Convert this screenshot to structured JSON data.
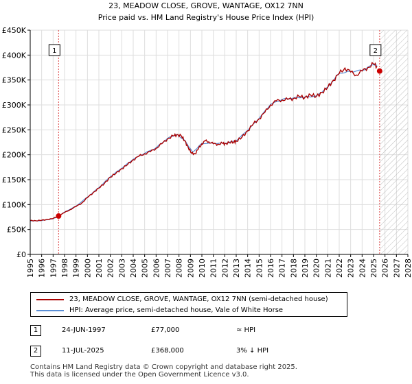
{
  "chart_data": {
    "type": "line",
    "title": "23, MEADOW CLOSE, GROVE, WANTAGE, OX12 7NN",
    "subtitle": "Price paid vs. HM Land Registry's House Price Index (HPI)",
    "xlabel": "",
    "ylabel": "",
    "xlim": [
      1995,
      2028
    ],
    "ylim": [
      0,
      450000
    ],
    "x_ticks": [
      "1995",
      "1996",
      "1997",
      "1998",
      "1999",
      "2000",
      "2001",
      "2002",
      "2003",
      "2004",
      "2005",
      "2006",
      "2007",
      "2008",
      "2009",
      "2010",
      "2011",
      "2012",
      "2013",
      "2014",
      "2015",
      "2016",
      "2017",
      "2018",
      "2019",
      "2020",
      "2021",
      "2022",
      "2023",
      "2024",
      "2025",
      "2026",
      "2027",
      "2028"
    ],
    "y_ticks": [
      {
        "value": 0,
        "label": "£0"
      },
      {
        "value": 50000,
        "label": "£50K"
      },
      {
        "value": 100000,
        "label": "£100K"
      },
      {
        "value": 150000,
        "label": "£150K"
      },
      {
        "value": 200000,
        "label": "£200K"
      },
      {
        "value": 250000,
        "label": "£250K"
      },
      {
        "value": 300000,
        "label": "£300K"
      },
      {
        "value": 350000,
        "label": "£350K"
      },
      {
        "value": 400000,
        "label": "£400K"
      },
      {
        "value": 450000,
        "label": "£450K"
      }
    ],
    "grid": true,
    "hatch_after": 2025.53,
    "series": [
      {
        "name": "23, MEADOW CLOSE, GROVE, WANTAGE, OX12 7NN (semi-detached house)",
        "color": "#aa0000",
        "points": [
          [
            1995.0,
            68000
          ],
          [
            1995.5,
            67500
          ],
          [
            1996.0,
            68500
          ],
          [
            1996.5,
            70000
          ],
          [
            1997.0,
            72000
          ],
          [
            1997.48,
            77000
          ],
          [
            1998.0,
            84000
          ],
          [
            1998.5,
            90000
          ],
          [
            1999.0,
            96000
          ],
          [
            1999.5,
            103000
          ],
          [
            2000.0,
            114000
          ],
          [
            2000.5,
            124000
          ],
          [
            2001.0,
            133000
          ],
          [
            2001.5,
            143000
          ],
          [
            2002.0,
            155000
          ],
          [
            2002.5,
            163000
          ],
          [
            2003.0,
            172000
          ],
          [
            2003.5,
            180000
          ],
          [
            2004.0,
            190000
          ],
          [
            2004.5,
            197000
          ],
          [
            2005.0,
            202000
          ],
          [
            2005.5,
            206000
          ],
          [
            2006.0,
            213000
          ],
          [
            2006.5,
            222000
          ],
          [
            2007.0,
            232000
          ],
          [
            2007.5,
            238000
          ],
          [
            2007.8,
            240000
          ],
          [
            2008.2,
            238000
          ],
          [
            2008.5,
            228000
          ],
          [
            2008.8,
            215000
          ],
          [
            2009.1,
            203000
          ],
          [
            2009.4,
            202000
          ],
          [
            2009.7,
            212000
          ],
          [
            2010.0,
            222000
          ],
          [
            2010.3,
            228000
          ],
          [
            2010.6,
            226000
          ],
          [
            2011.0,
            222000
          ],
          [
            2011.4,
            221000
          ],
          [
            2011.8,
            223000
          ],
          [
            2012.0,
            222000
          ],
          [
            2012.4,
            224000
          ],
          [
            2012.8,
            226000
          ],
          [
            2013.0,
            227000
          ],
          [
            2013.5,
            235000
          ],
          [
            2014.0,
            248000
          ],
          [
            2014.5,
            262000
          ],
          [
            2015.0,
            272000
          ],
          [
            2015.5,
            285000
          ],
          [
            2016.0,
            300000
          ],
          [
            2016.5,
            308000
          ],
          [
            2017.0,
            310000
          ],
          [
            2017.5,
            311000
          ],
          [
            2018.0,
            313000
          ],
          [
            2018.5,
            317000
          ],
          [
            2019.0,
            315000
          ],
          [
            2019.5,
            320000
          ],
          [
            2020.0,
            317000
          ],
          [
            2020.5,
            325000
          ],
          [
            2021.0,
            335000
          ],
          [
            2021.5,
            350000
          ],
          [
            2022.0,
            363000
          ],
          [
            2022.5,
            374000
          ],
          [
            2023.0,
            366000
          ],
          [
            2023.5,
            360000
          ],
          [
            2024.0,
            368000
          ],
          [
            2024.5,
            375000
          ],
          [
            2025.0,
            382000
          ],
          [
            2025.3,
            378000
          ]
        ]
      },
      {
        "name": "HPI: Average price, semi-detached house, Vale of White Horse",
        "color": "#5b8fd6",
        "points": [
          [
            1995.0,
            67000
          ],
          [
            1996.0,
            68000
          ],
          [
            1997.0,
            71500
          ],
          [
            1997.48,
            77000
          ],
          [
            1998.0,
            85000
          ],
          [
            1999.0,
            97000
          ],
          [
            2000.0,
            115000
          ],
          [
            2001.0,
            134000
          ],
          [
            2002.0,
            156000
          ],
          [
            2003.0,
            173000
          ],
          [
            2004.0,
            191000
          ],
          [
            2005.0,
            203000
          ],
          [
            2006.0,
            214000
          ],
          [
            2007.0,
            233000
          ],
          [
            2007.8,
            241000
          ],
          [
            2008.5,
            229000
          ],
          [
            2009.2,
            205000
          ],
          [
            2010.0,
            223000
          ],
          [
            2011.0,
            223000
          ],
          [
            2012.0,
            223000
          ],
          [
            2013.0,
            228000
          ],
          [
            2014.0,
            249000
          ],
          [
            2015.0,
            273000
          ],
          [
            2016.0,
            301000
          ],
          [
            2017.0,
            311000
          ],
          [
            2018.0,
            314000
          ],
          [
            2019.0,
            316000
          ],
          [
            2020.0,
            318000
          ],
          [
            2021.0,
            336000
          ],
          [
            2022.0,
            364000
          ],
          [
            2023.0,
            367000
          ],
          [
            2024.0,
            369000
          ],
          [
            2025.0,
            381000
          ],
          [
            2025.3,
            379000
          ]
        ]
      }
    ],
    "annotations": [
      {
        "id": "1",
        "x": 1997.48,
        "y": 77000
      },
      {
        "id": "2",
        "x": 2025.53,
        "y": 368000
      }
    ]
  },
  "legend": {
    "property_label": "23, MEADOW CLOSE, GROVE, WANTAGE, OX12 7NN (semi-detached house)",
    "hpi_label": "HPI: Average price, semi-detached house, Vale of White Horse"
  },
  "transactions": [
    {
      "num": "1",
      "date": "24-JUN-1997",
      "price": "£77,000",
      "hpi": "≈ HPI"
    },
    {
      "num": "2",
      "date": "11-JUL-2025",
      "price": "£368,000",
      "hpi": "3% ↓ HPI"
    }
  ],
  "footer": {
    "line1": "Contains HM Land Registry data © Crown copyright and database right 2025.",
    "line2": "This data is licensed under the Open Government Licence v3.0."
  }
}
